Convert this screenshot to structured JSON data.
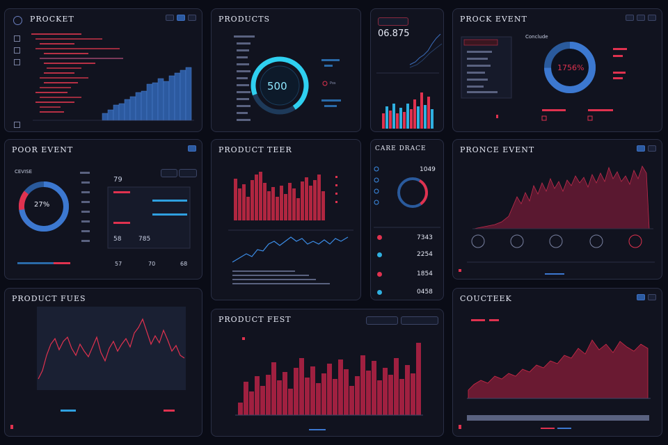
{
  "panels": {
    "p1": {
      "title": "PROCKET"
    },
    "p2": {
      "title": "PRODUCTS",
      "gauge_value": "500",
      "side_label": "Pos"
    },
    "p3": {
      "value": "06.875"
    },
    "p4": {
      "title": "PROCK EVENT",
      "gauge_value": "1756%",
      "side_title": "Conclude"
    },
    "p5": {
      "title": "POOR EVENT",
      "sub_title": "CEVISE",
      "gauge_value": "27%",
      "value1": "79",
      "value2": "58",
      "value3": "785",
      "foot1": "57",
      "foot2": "70",
      "foot3": "68"
    },
    "p6": {
      "title": "PRODUCT TEER"
    },
    "p7": {
      "title": "CARE DRACE",
      "value1": "1049",
      "value2": "7343",
      "value3": "2254",
      "value4": "1854",
      "value5": "0458"
    },
    "p8": {
      "title": "PRONCE EVENT"
    },
    "p9": {
      "title": "PRODUCT FUES"
    },
    "p10": {
      "title": "PRODUCT FEST"
    },
    "p11": {
      "title": "COUCTEEK"
    }
  },
  "colors": {
    "red": "#e0324f",
    "blue": "#3c78d0",
    "cyan": "#2fd0f0",
    "panel": "#11131f",
    "bg": "#0a0c16"
  }
}
